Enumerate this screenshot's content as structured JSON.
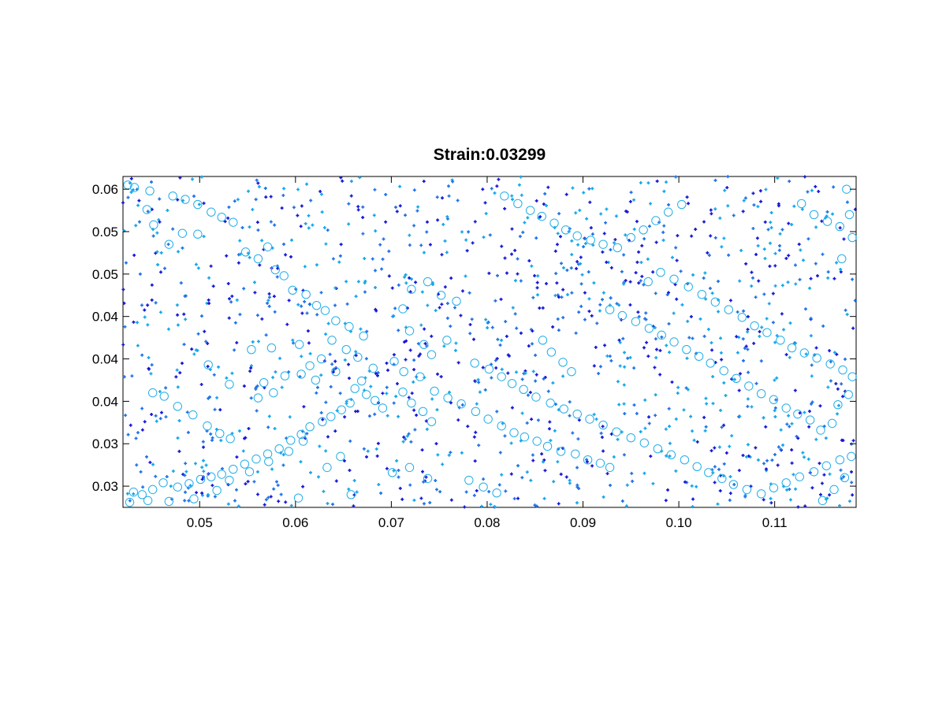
{
  "chart_data": {
    "type": "scatter",
    "title": "Strain:0.03299",
    "xlabel": "",
    "ylabel": "",
    "xlim": [
      0.042,
      0.1185
    ],
    "ylim": [
      0.0255,
      0.0645
    ],
    "x_ticks": [
      0.05,
      0.06,
      0.07,
      0.08,
      0.09,
      0.1,
      0.11
    ],
    "x_tick_labels": [
      "0.05",
      "0.06",
      "0.07",
      "0.08",
      "0.09",
      "0.10",
      "0.11"
    ],
    "y_ticks": [
      0.028,
      0.033,
      0.038,
      0.043,
      0.048,
      0.053,
      0.058,
      0.063
    ],
    "y_tick_labels": [
      "0.03",
      "0.03",
      "0.04",
      "0.04",
      "0.04",
      "0.05",
      "0.05",
      "0.06"
    ],
    "grid": false,
    "legend": "none",
    "colors": {
      "dark_dot": "#1515d6",
      "mid_dot": "#1e72e6",
      "light_dot": "#14a6ea",
      "circle": "#22aee8"
    },
    "series": [
      {
        "marker": "circle",
        "color": "#22aee8",
        "points": [
          [
            0.0425,
            0.0635
          ],
          [
            0.0432,
            0.0632
          ],
          [
            0.0448,
            0.0628
          ],
          [
            0.0472,
            0.0622
          ],
          [
            0.0485,
            0.0618
          ],
          [
            0.0498,
            0.0612
          ],
          [
            0.0512,
            0.0603
          ],
          [
            0.0523,
            0.0597
          ],
          [
            0.0535,
            0.0591
          ],
          [
            0.0498,
            0.0577
          ],
          [
            0.0445,
            0.0606
          ],
          [
            0.0452,
            0.0588
          ],
          [
            0.0468,
            0.0565
          ],
          [
            0.0482,
            0.0578
          ],
          [
            0.0548,
            0.0556
          ],
          [
            0.0561,
            0.0548
          ],
          [
            0.0571,
            0.0562
          ],
          [
            0.0579,
            0.0535
          ],
          [
            0.0588,
            0.0528
          ],
          [
            0.0597,
            0.0511
          ],
          [
            0.0611,
            0.0506
          ],
          [
            0.0622,
            0.0493
          ],
          [
            0.0631,
            0.0487
          ],
          [
            0.0642,
            0.0475
          ],
          [
            0.0656,
            0.0468
          ],
          [
            0.0671,
            0.0457
          ],
          [
            0.0653,
            0.0441
          ],
          [
            0.0638,
            0.0452
          ],
          [
            0.0627,
            0.043
          ],
          [
            0.0615,
            0.0422
          ],
          [
            0.0606,
            0.0412
          ],
          [
            0.0621,
            0.0405
          ],
          [
            0.0642,
            0.0415
          ],
          [
            0.0665,
            0.0432
          ],
          [
            0.0681,
            0.0419
          ],
          [
            0.0669,
            0.0404
          ],
          [
            0.0662,
            0.0395
          ],
          [
            0.0674,
            0.0388
          ],
          [
            0.0683,
            0.0381
          ],
          [
            0.0691,
            0.0372
          ],
          [
            0.0657,
            0.0378
          ],
          [
            0.0648,
            0.037
          ],
          [
            0.0637,
            0.0362
          ],
          [
            0.0628,
            0.0356
          ],
          [
            0.0615,
            0.035
          ],
          [
            0.0606,
            0.0341
          ],
          [
            0.0595,
            0.0334
          ],
          [
            0.0583,
            0.0324
          ],
          [
            0.0571,
            0.0318
          ],
          [
            0.0559,
            0.0312
          ],
          [
            0.0547,
            0.0306
          ],
          [
            0.0535,
            0.03
          ],
          [
            0.0523,
            0.0294
          ],
          [
            0.0512,
            0.0291
          ],
          [
            0.0501,
            0.0288
          ],
          [
            0.0489,
            0.0283
          ],
          [
            0.0477,
            0.0279
          ],
          [
            0.0462,
            0.0284
          ],
          [
            0.0451,
            0.0276
          ],
          [
            0.044,
            0.027
          ],
          [
            0.0431,
            0.0273
          ],
          [
            0.0427,
            0.0261
          ],
          [
            0.0446,
            0.0263
          ],
          [
            0.0468,
            0.0262
          ],
          [
            0.0494,
            0.0265
          ],
          [
            0.0518,
            0.0275
          ],
          [
            0.0531,
            0.0287
          ],
          [
            0.0552,
            0.0297
          ],
          [
            0.0572,
            0.0309
          ],
          [
            0.0593,
            0.0321
          ],
          [
            0.0608,
            0.0333
          ],
          [
            0.0532,
            0.0336
          ],
          [
            0.0521,
            0.0342
          ],
          [
            0.0508,
            0.0351
          ],
          [
            0.0493,
            0.0364
          ],
          [
            0.0477,
            0.0374
          ],
          [
            0.0463,
            0.0386
          ],
          [
            0.0451,
            0.039
          ],
          [
            0.0561,
            0.0384
          ],
          [
            0.0577,
            0.039
          ],
          [
            0.0589,
            0.041
          ],
          [
            0.0567,
            0.0402
          ],
          [
            0.0531,
            0.04
          ],
          [
            0.0509,
            0.0423
          ],
          [
            0.0554,
            0.0441
          ],
          [
            0.0575,
            0.0443
          ],
          [
            0.0604,
            0.0447
          ],
          [
            0.0712,
            0.0489
          ],
          [
            0.0721,
            0.0512
          ],
          [
            0.0738,
            0.0521
          ],
          [
            0.0752,
            0.0505
          ],
          [
            0.0768,
            0.0498
          ],
          [
            0.0719,
            0.0463
          ],
          [
            0.0734,
            0.0447
          ],
          [
            0.0742,
            0.0435
          ],
          [
            0.0758,
            0.0452
          ],
          [
            0.0703,
            0.0427
          ],
          [
            0.0713,
            0.0415
          ],
          [
            0.073,
            0.0409
          ],
          [
            0.0745,
            0.0392
          ],
          [
            0.0759,
            0.0384
          ],
          [
            0.0773,
            0.0377
          ],
          [
            0.0788,
            0.0368
          ],
          [
            0.0801,
            0.0359
          ],
          [
            0.0815,
            0.0351
          ],
          [
            0.0828,
            0.0343
          ],
          [
            0.0839,
            0.0338
          ],
          [
            0.0852,
            0.0333
          ],
          [
            0.0863,
            0.0327
          ],
          [
            0.0877,
            0.0321
          ],
          [
            0.0892,
            0.0318
          ],
          [
            0.0905,
            0.0311
          ],
          [
            0.0918,
            0.0307
          ],
          [
            0.0928,
            0.0302
          ],
          [
            0.0742,
            0.0356
          ],
          [
            0.0733,
            0.0368
          ],
          [
            0.0721,
            0.0378
          ],
          [
            0.0712,
            0.0391
          ],
          [
            0.0787,
            0.0425
          ],
          [
            0.0802,
            0.0418
          ],
          [
            0.0815,
            0.0409
          ],
          [
            0.0826,
            0.0401
          ],
          [
            0.0838,
            0.0394
          ],
          [
            0.0851,
            0.0385
          ],
          [
            0.0866,
            0.0378
          ],
          [
            0.088,
            0.0371
          ],
          [
            0.0894,
            0.0365
          ],
          [
            0.0907,
            0.0359
          ],
          [
            0.0921,
            0.0352
          ],
          [
            0.0935,
            0.0344
          ],
          [
            0.095,
            0.0337
          ],
          [
            0.0964,
            0.0331
          ],
          [
            0.0978,
            0.0324
          ],
          [
            0.0992,
            0.0317
          ],
          [
            0.1006,
            0.0311
          ],
          [
            0.1019,
            0.0303
          ],
          [
            0.1031,
            0.0296
          ],
          [
            0.1045,
            0.0289
          ],
          [
            0.1057,
            0.0282
          ],
          [
            0.1071,
            0.0276
          ],
          [
            0.1086,
            0.0271
          ],
          [
            0.1099,
            0.0278
          ],
          [
            0.1112,
            0.0284
          ],
          [
            0.1126,
            0.0291
          ],
          [
            0.1141,
            0.0297
          ],
          [
            0.1154,
            0.0304
          ],
          [
            0.1168,
            0.0311
          ],
          [
            0.118,
            0.0315
          ],
          [
            0.1173,
            0.029
          ],
          [
            0.1162,
            0.0276
          ],
          [
            0.115,
            0.0263
          ],
          [
            0.0818,
            0.0622
          ],
          [
            0.0832,
            0.0613
          ],
          [
            0.0845,
            0.0605
          ],
          [
            0.0857,
            0.0598
          ],
          [
            0.087,
            0.059
          ],
          [
            0.0882,
            0.0582
          ],
          [
            0.0894,
            0.0575
          ],
          [
            0.0908,
            0.057
          ],
          [
            0.0921,
            0.0565
          ],
          [
            0.0936,
            0.0561
          ],
          [
            0.095,
            0.0573
          ],
          [
            0.0963,
            0.0582
          ],
          [
            0.0976,
            0.0593
          ],
          [
            0.0989,
            0.0603
          ],
          [
            0.1003,
            0.0612
          ],
          [
            0.0968,
            0.0521
          ],
          [
            0.0981,
            0.0532
          ],
          [
            0.0995,
            0.0524
          ],
          [
            0.101,
            0.0515
          ],
          [
            0.1024,
            0.0506
          ],
          [
            0.1038,
            0.0497
          ],
          [
            0.1052,
            0.0488
          ],
          [
            0.1066,
            0.0479
          ],
          [
            0.1079,
            0.0469
          ],
          [
            0.1092,
            0.0461
          ],
          [
            0.1106,
            0.0452
          ],
          [
            0.1118,
            0.0443
          ],
          [
            0.1131,
            0.0437
          ],
          [
            0.1144,
            0.0431
          ],
          [
            0.1158,
            0.0424
          ],
          [
            0.1171,
            0.0417
          ],
          [
            0.1181,
            0.0409
          ],
          [
            0.1177,
            0.0388
          ],
          [
            0.1166,
            0.0376
          ],
          [
            0.116,
            0.0354
          ],
          [
            0.1148,
            0.0346
          ],
          [
            0.1137,
            0.0358
          ],
          [
            0.1124,
            0.0365
          ],
          [
            0.1112,
            0.0372
          ],
          [
            0.1099,
            0.0382
          ],
          [
            0.1086,
            0.0389
          ],
          [
            0.1073,
            0.0398
          ],
          [
            0.106,
            0.0407
          ],
          [
            0.1047,
            0.0416
          ],
          [
            0.1033,
            0.0425
          ],
          [
            0.1021,
            0.0433
          ],
          [
            0.1008,
            0.0441
          ],
          [
            0.0995,
            0.045
          ],
          [
            0.0982,
            0.0458
          ],
          [
            0.0969,
            0.0466
          ],
          [
            0.0955,
            0.0474
          ],
          [
            0.0941,
            0.0481
          ],
          [
            0.0928,
            0.0488
          ],
          [
            0.1128,
            0.0613
          ],
          [
            0.1141,
            0.06
          ],
          [
            0.1155,
            0.0592
          ],
          [
            0.1168,
            0.0586
          ],
          [
            0.1178,
            0.06
          ],
          [
            0.1175,
            0.063
          ],
          [
            0.1181,
            0.0573
          ],
          [
            0.117,
            0.0548
          ],
          [
            0.0858,
            0.0452
          ],
          [
            0.0867,
            0.0438
          ],
          [
            0.0879,
            0.0426
          ],
          [
            0.0888,
            0.0415
          ],
          [
            0.0603,
            0.0266
          ],
          [
            0.0658,
            0.027
          ],
          [
            0.0701,
            0.0296
          ],
          [
            0.0719,
            0.0302
          ],
          [
            0.0738,
            0.0289
          ],
          [
            0.0633,
            0.0302
          ],
          [
            0.0647,
            0.0315
          ],
          [
            0.0781,
            0.0287
          ],
          [
            0.0796,
            0.0279
          ],
          [
            0.081,
            0.0272
          ]
        ]
      }
    ]
  },
  "dot_count": 1350,
  "dot_seed": 7
}
